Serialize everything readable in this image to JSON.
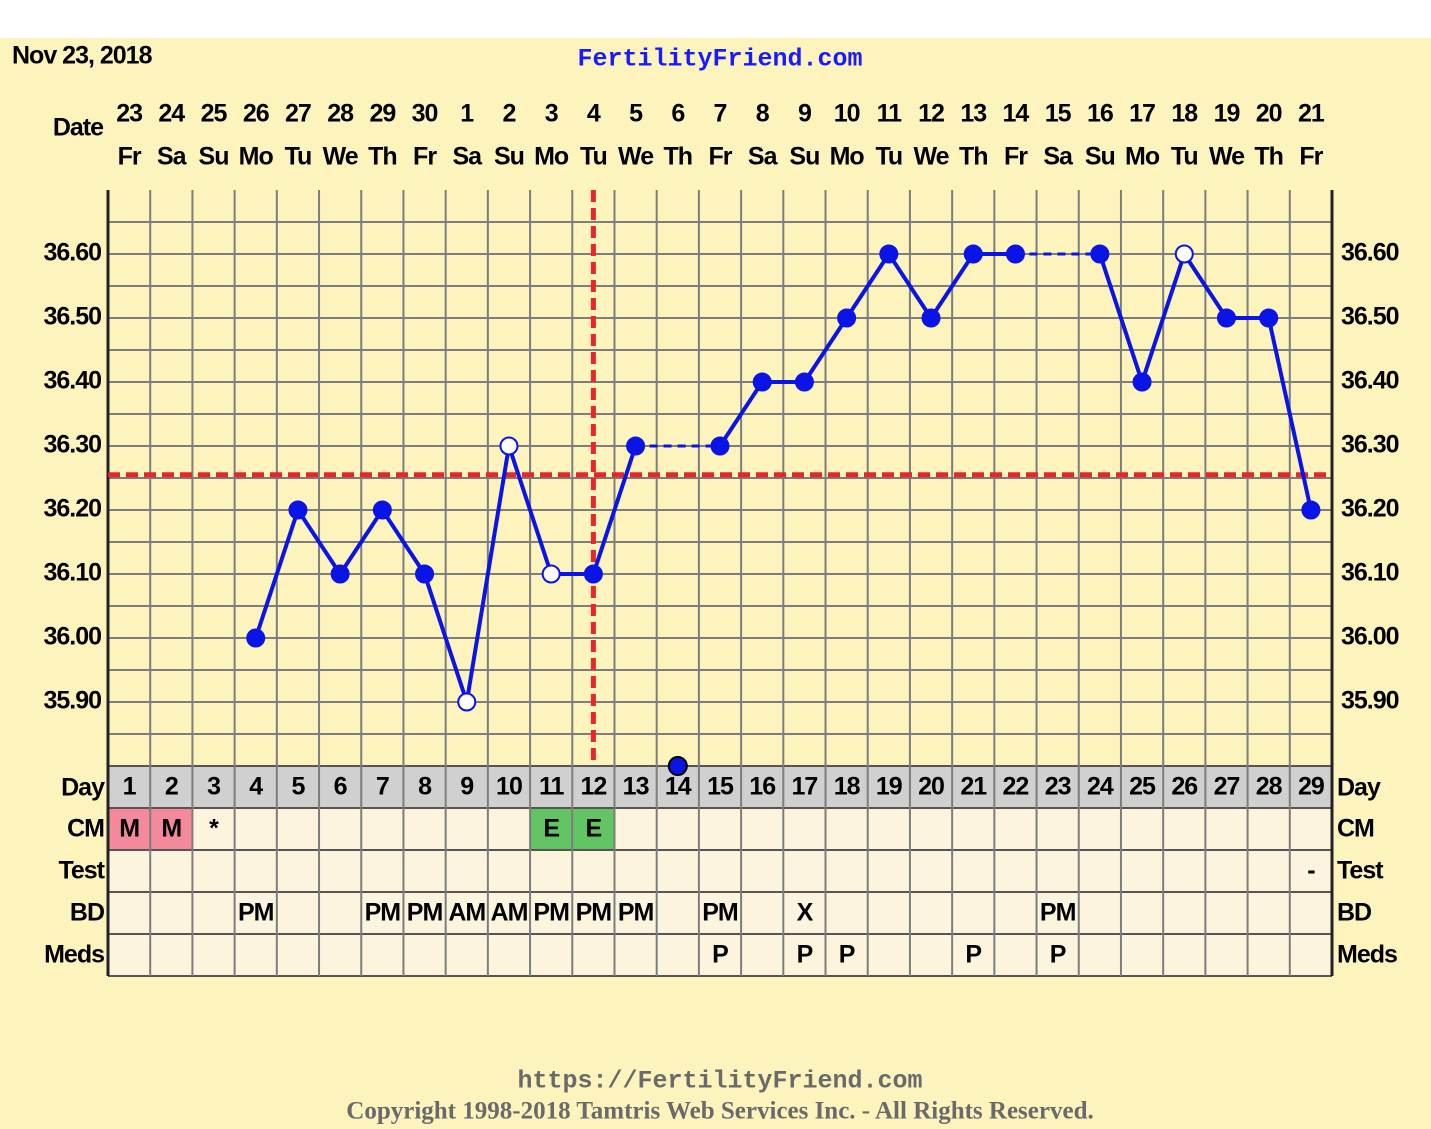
{
  "chart_data": {
    "type": "line",
    "date": "Nov 23, 2018",
    "title": "FertilityFriend.com",
    "x_label": "Date",
    "dates": [
      23,
      24,
      25,
      26,
      27,
      28,
      29,
      30,
      1,
      2,
      3,
      4,
      5,
      6,
      7,
      8,
      9,
      10,
      11,
      12,
      13,
      14,
      15,
      16,
      17,
      18,
      19,
      20,
      21
    ],
    "weekdays": [
      "Fr",
      "Sa",
      "Su",
      "Mo",
      "Tu",
      "We",
      "Th",
      "Fr",
      "Sa",
      "Su",
      "Mo",
      "Tu",
      "We",
      "Th",
      "Fr",
      "Sa",
      "Su",
      "Mo",
      "Tu",
      "We",
      "Th",
      "Fr",
      "Sa",
      "Su",
      "Mo",
      "Tu",
      "We",
      "Th",
      "Fr"
    ],
    "day_label": "Day",
    "categories": [
      1,
      2,
      3,
      4,
      5,
      6,
      7,
      8,
      9,
      10,
      11,
      12,
      13,
      14,
      15,
      16,
      17,
      18,
      19,
      20,
      21,
      22,
      23,
      24,
      25,
      26,
      27,
      28,
      29
    ],
    "series": [
      {
        "color": "#0a14e6",
        "values": [
          null,
          null,
          null,
          36.0,
          36.2,
          36.1,
          36.2,
          36.1,
          35.9,
          36.3,
          36.1,
          36.1,
          36.3,
          null,
          36.3,
          36.4,
          36.4,
          36.5,
          36.6,
          36.5,
          36.6,
          36.6,
          null,
          36.6,
          36.4,
          36.6,
          36.5,
          36.5,
          36.2
        ],
        "markers": [
          null,
          null,
          null,
          "filled",
          "filled",
          "filled",
          "filled",
          "filled",
          "open",
          "open",
          "open",
          "filled",
          "filled",
          null,
          "filled",
          "filled",
          "filled",
          "filled",
          "filled",
          "filled",
          "filled",
          "filled",
          null,
          "filled",
          "filled",
          "open",
          "filled",
          "filled",
          "filled"
        ]
      }
    ],
    "ylim": [
      35.8,
      36.7
    ],
    "yticks": [
      {
        "value": 35.9,
        "label": "35.90"
      },
      {
        "value": 36.0,
        "label": "36.00"
      },
      {
        "value": 36.1,
        "label": "36.10"
      },
      {
        "value": 36.2,
        "label": "36.20"
      },
      {
        "value": 36.3,
        "label": "36.30"
      },
      {
        "value": 36.4,
        "label": "36.40"
      },
      {
        "value": 36.5,
        "label": "36.50"
      },
      {
        "value": 36.6,
        "label": "36.60"
      }
    ],
    "ygrid": [
      35.85,
      35.9,
      35.95,
      36.0,
      36.05,
      36.1,
      36.15,
      36.2,
      36.25,
      36.3,
      36.35,
      36.4,
      36.45,
      36.5,
      36.55,
      36.6,
      36.65
    ],
    "grid": true,
    "coverline": 36.255,
    "ovulation_day": 12,
    "reference_color": "#e8262a",
    "marker_day": 14,
    "rows": [
      {
        "label": "CM",
        "cells": [
          "M",
          "M",
          "*",
          null,
          null,
          null,
          null,
          null,
          null,
          null,
          "E",
          "E",
          null,
          null,
          null,
          null,
          null,
          null,
          null,
          null,
          null,
          null,
          null,
          null,
          null,
          null,
          null,
          null,
          null
        ],
        "colors": {
          "M": "#f3899b",
          "E": "#63c463"
        }
      },
      {
        "label": "Test",
        "cells": [
          null,
          null,
          null,
          null,
          null,
          null,
          null,
          null,
          null,
          null,
          null,
          null,
          null,
          null,
          null,
          null,
          null,
          null,
          null,
          null,
          null,
          null,
          null,
          null,
          null,
          null,
          null,
          null,
          "-"
        ]
      },
      {
        "label": "BD",
        "cells": [
          null,
          null,
          null,
          "PM",
          null,
          null,
          "PM",
          "PM",
          "AM",
          "AM",
          "PM",
          "PM",
          "PM",
          null,
          "PM",
          null,
          "X",
          null,
          null,
          null,
          null,
          null,
          "PM",
          null,
          null,
          null,
          null,
          null,
          null
        ]
      },
      {
        "label": "Meds",
        "cells": [
          null,
          null,
          null,
          null,
          null,
          null,
          null,
          null,
          null,
          null,
          null,
          null,
          null,
          null,
          "P",
          null,
          "P",
          "P",
          null,
          null,
          "P",
          null,
          "P",
          null,
          null,
          null,
          null,
          null,
          null
        ]
      }
    ],
    "footer_url": "https://FertilityFriend.com",
    "copyright": "Copyright 1998-2018 Tamtris Web Services Inc. - All Rights Reserved."
  }
}
